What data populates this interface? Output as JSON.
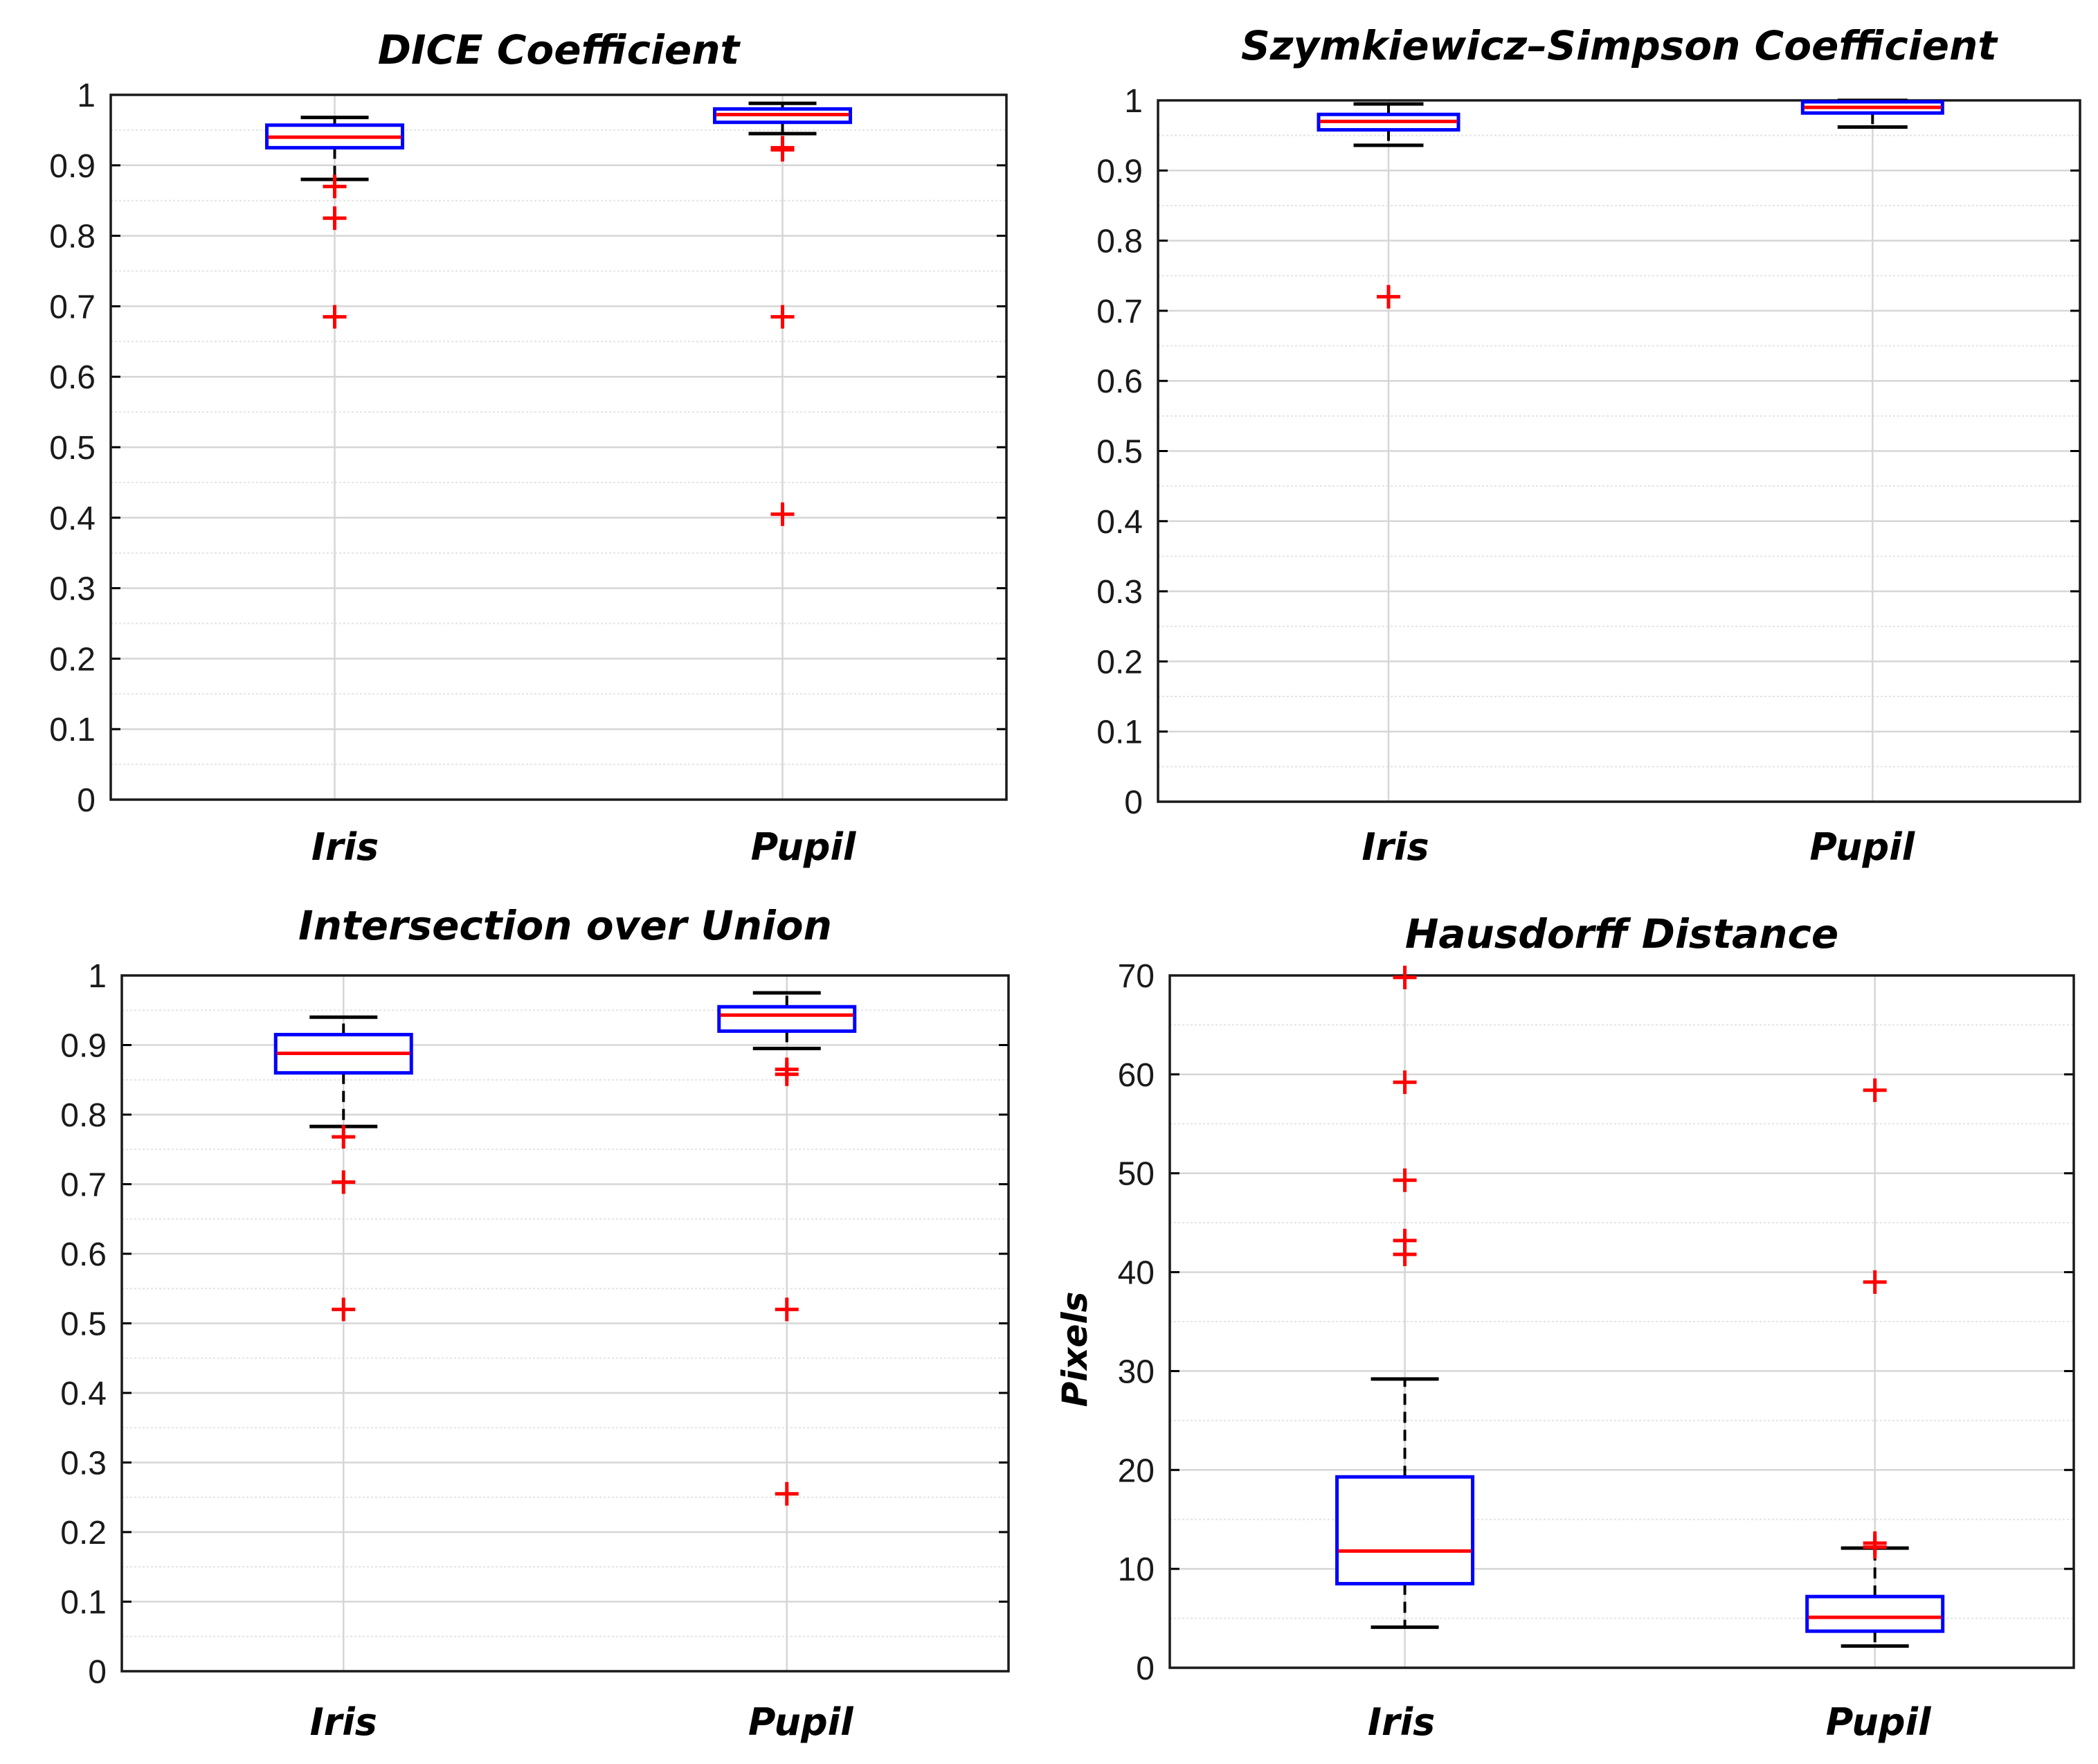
{
  "colors": {
    "box": "#0000ff",
    "median": "#ff0000",
    "whisker": "#000000",
    "outlier": "#ff0000",
    "grid_major": "#d6d6d6",
    "grid_minor": "#e4e4e4"
  },
  "chart_data": [
    {
      "type": "boxplot",
      "title": "DICE Coefficient",
      "ylabel": "",
      "ylim": [
        0,
        1
      ],
      "yticks": [
        "0",
        "0.1",
        "0.2",
        "0.3",
        "0.4",
        "0.5",
        "0.6",
        "0.7",
        "0.8",
        "0.9",
        "1"
      ],
      "categories": [
        "Iris",
        "Pupil"
      ],
      "boxes": [
        {
          "name": "Iris",
          "q1": 0.925,
          "median": 0.94,
          "q3": 0.957,
          "whisker_low": 0.88,
          "whisker_high": 0.968,
          "outliers": [
            0.87,
            0.825,
            0.685
          ]
        },
        {
          "name": "Pupil",
          "q1": 0.961,
          "median": 0.972,
          "q3": 0.98,
          "whisker_low": 0.945,
          "whisker_high": 0.988,
          "outliers": [
            0.925,
            0.922,
            0.685,
            0.405
          ]
        }
      ]
    },
    {
      "type": "boxplot",
      "title": "Szymkiewicz–Simpson Coefficient",
      "ylabel": "",
      "ylim": [
        0,
        1
      ],
      "yticks": [
        "0",
        "0.1",
        "0.2",
        "0.3",
        "0.4",
        "0.5",
        "0.6",
        "0.7",
        "0.8",
        "0.9",
        "1"
      ],
      "categories": [
        "Iris",
        "Pupil"
      ],
      "boxes": [
        {
          "name": "Iris",
          "q1": 0.958,
          "median": 0.97,
          "q3": 0.98,
          "whisker_low": 0.936,
          "whisker_high": 0.995,
          "outliers": [
            0.72
          ]
        },
        {
          "name": "Pupil",
          "q1": 0.982,
          "median": 0.99,
          "q3": 0.998,
          "whisker_low": 0.962,
          "whisker_high": 1.0,
          "outliers": []
        }
      ]
    },
    {
      "type": "boxplot",
      "title": "Intersection over Union",
      "ylabel": "",
      "ylim": [
        0,
        1
      ],
      "yticks": [
        "0",
        "0.1",
        "0.2",
        "0.3",
        "0.4",
        "0.5",
        "0.6",
        "0.7",
        "0.8",
        "0.9",
        "1"
      ],
      "categories": [
        "Iris",
        "Pupil"
      ],
      "boxes": [
        {
          "name": "Iris",
          "q1": 0.86,
          "median": 0.888,
          "q3": 0.915,
          "whisker_low": 0.783,
          "whisker_high": 0.94,
          "outliers": [
            0.768,
            0.703,
            0.52
          ]
        },
        {
          "name": "Pupil",
          "q1": 0.92,
          "median": 0.943,
          "q3": 0.955,
          "whisker_low": 0.895,
          "whisker_high": 0.975,
          "outliers": [
            0.865,
            0.858,
            0.52,
            0.255
          ]
        }
      ]
    },
    {
      "type": "boxplot",
      "title": "Hausdorff Distance",
      "ylabel": "Pixels",
      "ylim": [
        0,
        70
      ],
      "yticks": [
        "0",
        "10",
        "20",
        "30",
        "40",
        "50",
        "60",
        "70"
      ],
      "categories": [
        "Iris",
        "Pupil"
      ],
      "boxes": [
        {
          "name": "Iris",
          "q1": 8.5,
          "median": 11.8,
          "q3": 19.3,
          "whisker_low": 4.1,
          "whisker_high": 29.2,
          "outliers": [
            69.8,
            59.2,
            49.3,
            43.2,
            41.8
          ]
        },
        {
          "name": "Pupil",
          "q1": 3.7,
          "median": 5.1,
          "q3": 7.2,
          "whisker_low": 2.2,
          "whisker_high": 12.1,
          "outliers": [
            58.4,
            39.0,
            12.6,
            12.2
          ]
        }
      ]
    }
  ]
}
